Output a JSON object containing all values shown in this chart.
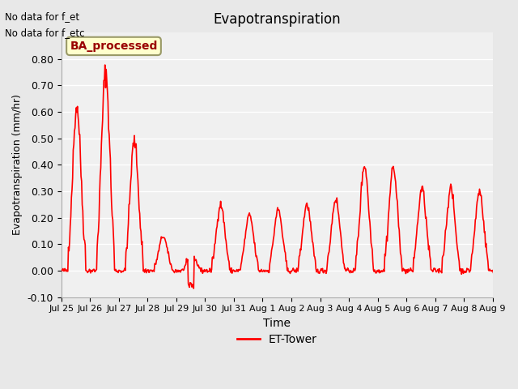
{
  "title": "Evapotranspiration",
  "ylabel": "Evapotranspiration (mm/hr)",
  "xlabel": "Time",
  "ylim": [
    -0.1,
    0.9
  ],
  "yticks": [
    -0.1,
    0.0,
    0.1,
    0.2,
    0.3,
    0.4,
    0.5,
    0.6,
    0.7,
    0.8
  ],
  "bg_color": "#e8e8e8",
  "plot_bg": "#f0f0f0",
  "line_color": "red",
  "line_width": 1.2,
  "legend_label": "ET-Tower",
  "text1": "No data for f_et",
  "text2": "No data for f_etc",
  "box_label": "BA_processed",
  "box_facecolor": "#ffffcc",
  "box_edgecolor": "#999966",
  "box_text_color": "#990000",
  "tick_labels": [
    "Jul 25",
    "Jul 26",
    "Jul 27",
    "Jul 28",
    "Jul 29",
    "Jul 30",
    "Jul 31",
    "Aug 1",
    "Aug 2",
    "Aug 3",
    "Aug 4",
    "Aug 5",
    "Aug 6",
    "Aug 7",
    "Aug 8",
    "Aug 9"
  ]
}
